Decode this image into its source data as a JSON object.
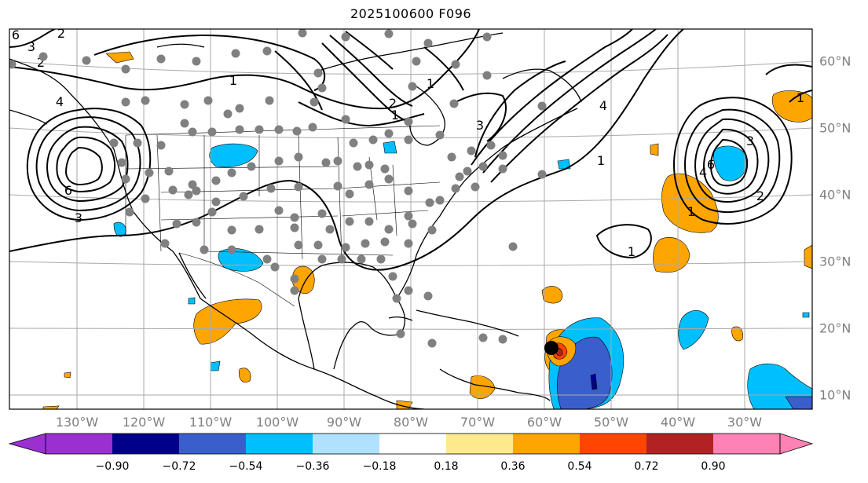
{
  "title": "2025100600 F096",
  "lon_labels": [
    "130°W",
    "120°W",
    "110°W",
    "100°W",
    "90°W",
    "80°W",
    "70°W",
    "60°W",
    "50°W",
    "40°W",
    "30°W"
  ],
  "lat_labels": [
    "60°N",
    "50°N",
    "40°N",
    "30°N",
    "20°N",
    "10°N"
  ],
  "colorbar": {
    "ticks": [
      "−0.90",
      "−0.72",
      "−0.54",
      "−0.36",
      "−0.18",
      "0.18",
      "0.36",
      "0.54",
      "0.72",
      "0.90"
    ],
    "colors": [
      "#9b30d0",
      "#00008b",
      "#3a5fcd",
      "#00bfff",
      "#b0e2ff",
      "#ffffff",
      "#fee98b",
      "#ffa500",
      "#ff4500",
      "#b22222",
      "#ff82b4"
    ]
  },
  "contour_labels": [
    "1",
    "1",
    "1",
    "1",
    "1",
    "1",
    "1",
    "2",
    "2",
    "2",
    "2",
    "3",
    "3",
    "3",
    "3",
    "4",
    "4",
    "4",
    "6",
    "6",
    "6"
  ],
  "colors": {
    "frame": "#000000",
    "grid": "#a9a9a9",
    "station": "#808080",
    "storm": "#000000"
  },
  "storm_marker": {
    "lon": -59.3,
    "lat": 17.0
  }
}
